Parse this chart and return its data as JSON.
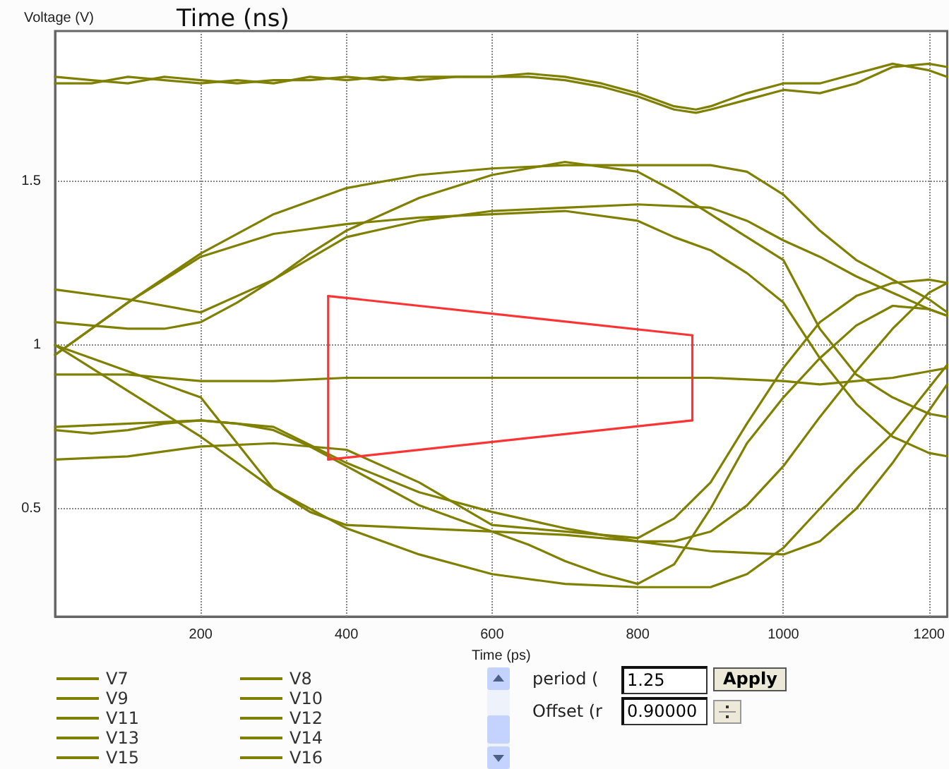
{
  "chart_data": {
    "type": "line",
    "title": "Time (ns)",
    "xlabel": "Time (ps)",
    "ylabel": "Voltage (V)",
    "xlim": [
      0,
      1225
    ],
    "xticks": [
      200,
      400,
      600,
      800,
      1000,
      1200
    ],
    "ylim": [
      0.17,
      1.96
    ],
    "yticks": [
      0.5,
      1,
      1.5
    ],
    "grid": true,
    "legend": "bottom left",
    "marker": "none",
    "line_style": "solid",
    "annotations": [
      "period (",
      "1.25",
      "Apply",
      "Offset (r",
      "0.90000"
    ],
    "series": [
      {
        "name": "V7",
        "color": "#808000",
        "x": [
          0,
          50,
          100,
          150,
          200,
          250,
          300,
          350,
          400,
          450,
          500,
          550,
          600,
          650,
          700,
          750,
          800,
          850,
          880,
          900,
          950,
          1000,
          1050,
          1100,
          1150,
          1200,
          1225
        ],
        "values": [
          1.82,
          1.81,
          1.8,
          1.82,
          1.81,
          1.8,
          1.81,
          1.81,
          1.82,
          1.81,
          1.82,
          1.82,
          1.82,
          1.83,
          1.82,
          1.8,
          1.77,
          1.73,
          1.72,
          1.73,
          1.77,
          1.8,
          1.8,
          1.83,
          1.86,
          1.84,
          1.82
        ]
      },
      {
        "name": "V8",
        "color": "#808000",
        "x": [
          0,
          50,
          100,
          150,
          200,
          250,
          300,
          350,
          400,
          450,
          500,
          550,
          600,
          650,
          700,
          750,
          800,
          850,
          880,
          900,
          950,
          1000,
          1050,
          1100,
          1150,
          1200,
          1225
        ],
        "values": [
          1.8,
          1.8,
          1.82,
          1.81,
          1.8,
          1.81,
          1.8,
          1.82,
          1.81,
          1.82,
          1.81,
          1.82,
          1.82,
          1.82,
          1.81,
          1.79,
          1.76,
          1.72,
          1.71,
          1.72,
          1.75,
          1.78,
          1.77,
          1.8,
          1.85,
          1.86,
          1.85
        ]
      },
      {
        "name": "V9",
        "color": "#808000",
        "x": [
          0,
          100,
          200,
          300,
          400,
          500,
          600,
          700,
          800,
          900,
          950,
          1000,
          1050,
          1100,
          1150,
          1200,
          1225
        ],
        "values": [
          0.97,
          1.13,
          1.28,
          1.4,
          1.48,
          1.52,
          1.54,
          1.55,
          1.55,
          1.55,
          1.53,
          1.46,
          1.35,
          1.26,
          1.2,
          1.14,
          1.1
        ]
      },
      {
        "name": "V10",
        "color": "#808000",
        "x": [
          0,
          50,
          100,
          150,
          200,
          250,
          300,
          350,
          400,
          500,
          600,
          700,
          800,
          850,
          900,
          950,
          1000,
          1050,
          1100,
          1150,
          1200,
          1225
        ],
        "values": [
          1.07,
          1.06,
          1.05,
          1.05,
          1.07,
          1.13,
          1.2,
          1.28,
          1.35,
          1.45,
          1.52,
          1.56,
          1.53,
          1.47,
          1.4,
          1.33,
          1.26,
          1.05,
          0.91,
          0.84,
          0.79,
          0.78
        ]
      },
      {
        "name": "V11",
        "color": "#808000",
        "x": [
          0,
          100,
          200,
          300,
          400,
          500,
          600,
          700,
          800,
          900,
          950,
          1000,
          1050,
          1100,
          1150,
          1200,
          1225
        ],
        "values": [
          1.17,
          1.14,
          1.1,
          1.2,
          1.33,
          1.38,
          1.41,
          1.42,
          1.43,
          1.42,
          1.38,
          1.32,
          1.27,
          1.21,
          1.16,
          1.11,
          1.09
        ]
      },
      {
        "name": "V12",
        "color": "#808000",
        "x": [
          0,
          100,
          200,
          300,
          400,
          500,
          600,
          700,
          800,
          850,
          900,
          950,
          1000,
          1050,
          1100,
          1150,
          1200,
          1225
        ],
        "values": [
          0.97,
          1.13,
          1.27,
          1.34,
          1.37,
          1.39,
          1.4,
          1.41,
          1.38,
          1.33,
          1.29,
          1.22,
          1.13,
          0.96,
          0.82,
          0.72,
          0.67,
          0.66
        ]
      },
      {
        "name": "V13",
        "color": "#808000",
        "x": [
          0,
          100,
          200,
          300,
          400,
          500,
          600,
          700,
          800,
          900,
          1000,
          1050,
          1100,
          1150,
          1200,
          1225
        ],
        "values": [
          0.91,
          0.91,
          0.89,
          0.89,
          0.9,
          0.9,
          0.9,
          0.9,
          0.9,
          0.9,
          0.89,
          0.88,
          0.89,
          0.9,
          0.92,
          0.93
        ]
      },
      {
        "name": "V14",
        "color": "#808000",
        "x": [
          0,
          100,
          200,
          250,
          300,
          400,
          500,
          600,
          700,
          800,
          900,
          950,
          1000,
          1050,
          1100,
          1150,
          1200,
          1225
        ],
        "values": [
          1.0,
          0.86,
          0.72,
          0.64,
          0.56,
          0.44,
          0.36,
          0.3,
          0.27,
          0.26,
          0.26,
          0.3,
          0.38,
          0.5,
          0.62,
          0.73,
          0.87,
          0.94
        ]
      },
      {
        "name": "V15",
        "color": "#808000",
        "x": [
          0,
          100,
          200,
          250,
          300,
          350,
          400,
          500,
          600,
          700,
          800,
          850,
          900,
          950,
          1000,
          1050,
          1100,
          1150,
          1200,
          1225
        ],
        "values": [
          1.0,
          0.92,
          0.84,
          0.7,
          0.56,
          0.49,
          0.45,
          0.44,
          0.43,
          0.42,
          0.4,
          0.4,
          0.43,
          0.51,
          0.63,
          0.78,
          0.92,
          1.05,
          1.16,
          1.19
        ]
      },
      {
        "name": "V16",
        "color": "#808000",
        "x": [
          0,
          200,
          300,
          400,
          500,
          600,
          700,
          800,
          900,
          1000,
          1050,
          1100,
          1150,
          1200,
          1225
        ],
        "values": [
          0.75,
          0.77,
          0.75,
          0.64,
          0.55,
          0.49,
          0.44,
          0.4,
          0.37,
          0.36,
          0.4,
          0.5,
          0.64,
          0.8,
          0.88
        ]
      },
      {
        "color": "#808000",
        "x": [
          0,
          50,
          100,
          150,
          200,
          250,
          300,
          350,
          400,
          450,
          500,
          550,
          600,
          650,
          700,
          750,
          800,
          850,
          900,
          950,
          1000,
          1050,
          1100,
          1150,
          1200,
          1225
        ],
        "values": [
          0.74,
          0.73,
          0.74,
          0.76,
          0.77,
          0.76,
          0.74,
          0.69,
          0.63,
          0.57,
          0.51,
          0.47,
          0.43,
          0.39,
          0.34,
          0.3,
          0.27,
          0.33,
          0.5,
          0.7,
          0.84,
          0.96,
          1.06,
          1.12,
          1.11,
          1.09
        ]
      },
      {
        "color": "#808000",
        "x": [
          0,
          100,
          200,
          300,
          400,
          500,
          600,
          700,
          800,
          850,
          900,
          950,
          1000,
          1050,
          1100,
          1150,
          1200,
          1225
        ],
        "values": [
          0.65,
          0.66,
          0.69,
          0.7,
          0.68,
          0.58,
          0.45,
          0.43,
          0.41,
          0.47,
          0.58,
          0.76,
          0.93,
          1.07,
          1.15,
          1.19,
          1.2,
          1.19
        ]
      },
      {
        "color": "#ff3333",
        "x": [
          375,
          875
        ],
        "values": [
          1.15,
          1.03
        ]
      },
      {
        "color": "#ff3333",
        "x": [
          375,
          875
        ],
        "values": [
          0.65,
          0.77
        ]
      },
      {
        "color": "#ff3333",
        "x": [
          375,
          375
        ],
        "values": [
          0.65,
          1.15
        ]
      },
      {
        "color": "#ff3333",
        "x": [
          875,
          875
        ],
        "values": [
          0.77,
          1.03
        ]
      }
    ]
  }
}
